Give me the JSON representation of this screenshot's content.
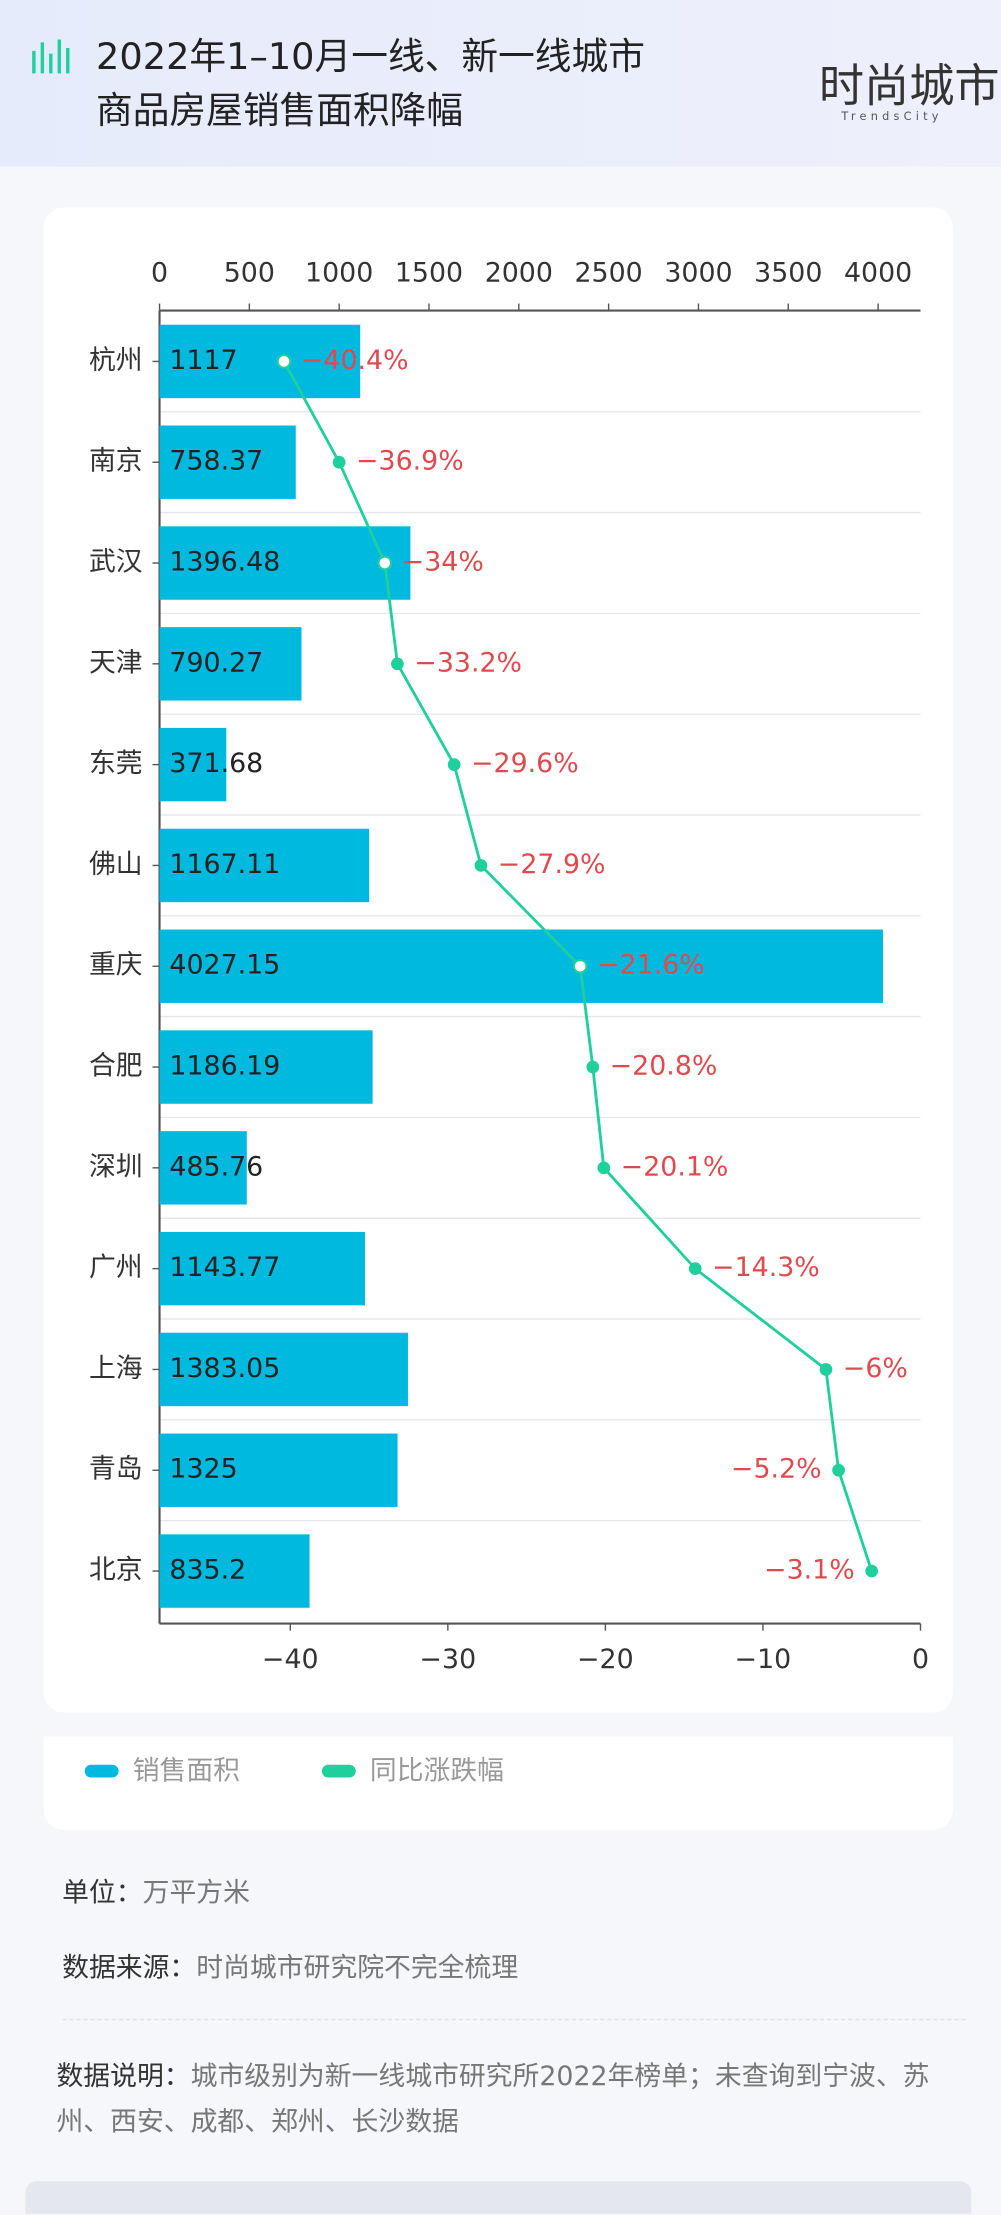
{
  "header": {
    "title_lines": [
      "2022年1–10月一线、新一线城市",
      "商品房屋销售面积降幅"
    ],
    "logo": "时尚城市",
    "logo_sub": "TrendsCity"
  },
  "chart_data": {
    "type": "bar_line",
    "categories": [
      "杭州",
      "南京",
      "武汉",
      "天津",
      "东莞",
      "佛山",
      "重庆",
      "合肥",
      "深圳",
      "广州",
      "上海",
      "青岛",
      "北京"
    ],
    "series": [
      {
        "name": "销售面积",
        "type": "bar",
        "color": "#00b9df",
        "values": [
          1117,
          758.37,
          1396.48,
          790.27,
          371.68,
          1167.11,
          4027.15,
          1186.19,
          485.76,
          1143.77,
          1383.05,
          1325,
          835.2
        ]
      },
      {
        "name": "同比涨跌幅",
        "type": "line",
        "axis": "x2",
        "color": "#1fcf9c",
        "values": [
          -40.4,
          -36.9,
          -34,
          -33.2,
          -29.6,
          -27.9,
          -21.6,
          -20.8,
          -20.1,
          -14.3,
          -6,
          -5.2,
          -3.1
        ],
        "value_labels": [
          "−40.4%",
          "−36.9%",
          "−34%",
          "−33.2%",
          "−29.6%",
          "−27.9%",
          "−21.6%",
          "−20.8%",
          "−20.1%",
          "−14.3%",
          "−6%",
          "−5.2%",
          "−3.1%"
        ]
      }
    ],
    "xlim": [
      0,
      4236
    ],
    "xticks": [
      0,
      500,
      1000,
      1500,
      2000,
      2500,
      3000,
      3500,
      4000
    ],
    "x2lim": [
      -48.3,
      0
    ],
    "x2ticks": [
      {
        "value": -40,
        "label": "−40"
      },
      {
        "value": -30,
        "label": "−30"
      },
      {
        "value": -20,
        "label": "−20"
      },
      {
        "value": -10,
        "label": "−10"
      },
      0
    ]
  },
  "footer": {
    "unit_label": "单位：",
    "unit": "万平方米",
    "source_label": "数据来源：",
    "source": "时尚城市研究院不完全梳理",
    "note_label": "数据说明：",
    "note": "城市级别为新一线城市研究所2022年榜单；未查询到宁波、苏州、西安、成都、郑州、长沙数据"
  }
}
